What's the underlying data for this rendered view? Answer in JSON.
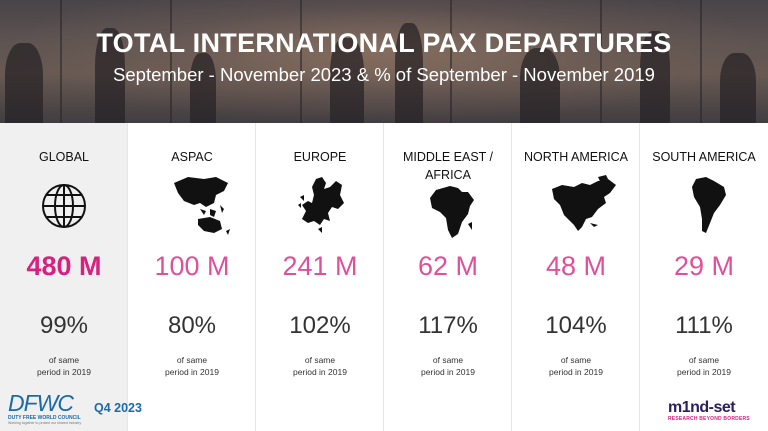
{
  "header": {
    "title": "TOTAL INTERNATIONAL PAX DEPARTURES",
    "subtitle": "September - November 2023 & % of September - November 2019"
  },
  "columns": [
    {
      "region": "GLOBAL",
      "value": "480 M",
      "pct": "99%",
      "note_line1": "of same",
      "note_line2": "period in 2019",
      "icon": "globe-icon"
    },
    {
      "region": "ASPAC",
      "value": "100 M",
      "pct": "80%",
      "note_line1": "of same",
      "note_line2": "period in 2019",
      "icon": "asia-pacific-map-icon"
    },
    {
      "region": "EUROPE",
      "value": "241 M",
      "pct": "102%",
      "note_line1": "of same",
      "note_line2": "period in 2019",
      "icon": "europe-map-icon"
    },
    {
      "region": "MIDDLE EAST /\nAFRICA",
      "value": "62 M",
      "pct": "117%",
      "note_line1": "of same",
      "note_line2": "period in 2019",
      "icon": "africa-map-icon"
    },
    {
      "region": "NORTH AMERICA",
      "value": "48 M",
      "pct": "104%",
      "note_line1": "of same",
      "note_line2": "period in 2019",
      "icon": "north-america-map-icon"
    },
    {
      "region": "SOUTH AMERICA",
      "value": "29 M",
      "pct": "111%",
      "note_line1": "of same",
      "note_line2": "period in 2019",
      "icon": "south-america-map-icon"
    }
  ],
  "footer": {
    "dfwc_logo": "DFWC",
    "dfwc_name": "DUTY FREE WORLD COUNCIL",
    "dfwc_tagline": "Working together to protect our shared industry",
    "quarter": "Q4 2023",
    "mindset_logo": "m1nd-set",
    "mindset_tagline": "RESEARCH BEYOND BORDERS"
  },
  "colors": {
    "accent": "#e0509a",
    "accent_strong": "#d8207f",
    "brand_blue": "#1c6aa8"
  }
}
